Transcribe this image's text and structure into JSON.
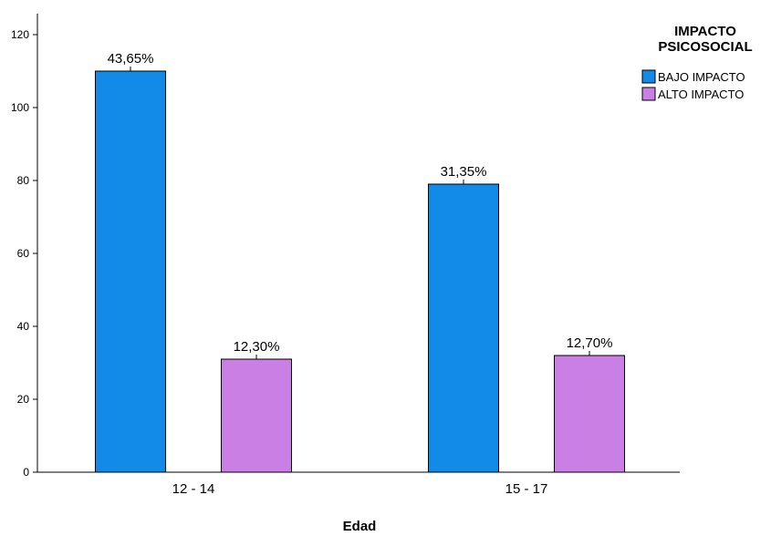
{
  "chart_data": {
    "type": "bar",
    "title": "",
    "xlabel": "Edad",
    "ylabel": "",
    "ylim": [
      0,
      125
    ],
    "yticks": [
      0,
      20,
      40,
      60,
      80,
      100,
      120
    ],
    "categories": [
      "12 - 14",
      "15 - 17"
    ],
    "series": [
      {
        "name": "BAJO IMPACTO",
        "color": "#128AE8",
        "values": [
          110,
          79
        ],
        "labels": [
          "43,65%",
          "31,35%"
        ]
      },
      {
        "name": "ALTO IMPACTO",
        "color": "#C97FE4",
        "values": [
          31,
          32
        ],
        "labels": [
          "12,30%",
          "12,70%"
        ]
      }
    ],
    "legend": {
      "title_lines": [
        "IMPACTO",
        "PSICOSOCIAL"
      ],
      "position": "top-right"
    },
    "grid": false
  }
}
